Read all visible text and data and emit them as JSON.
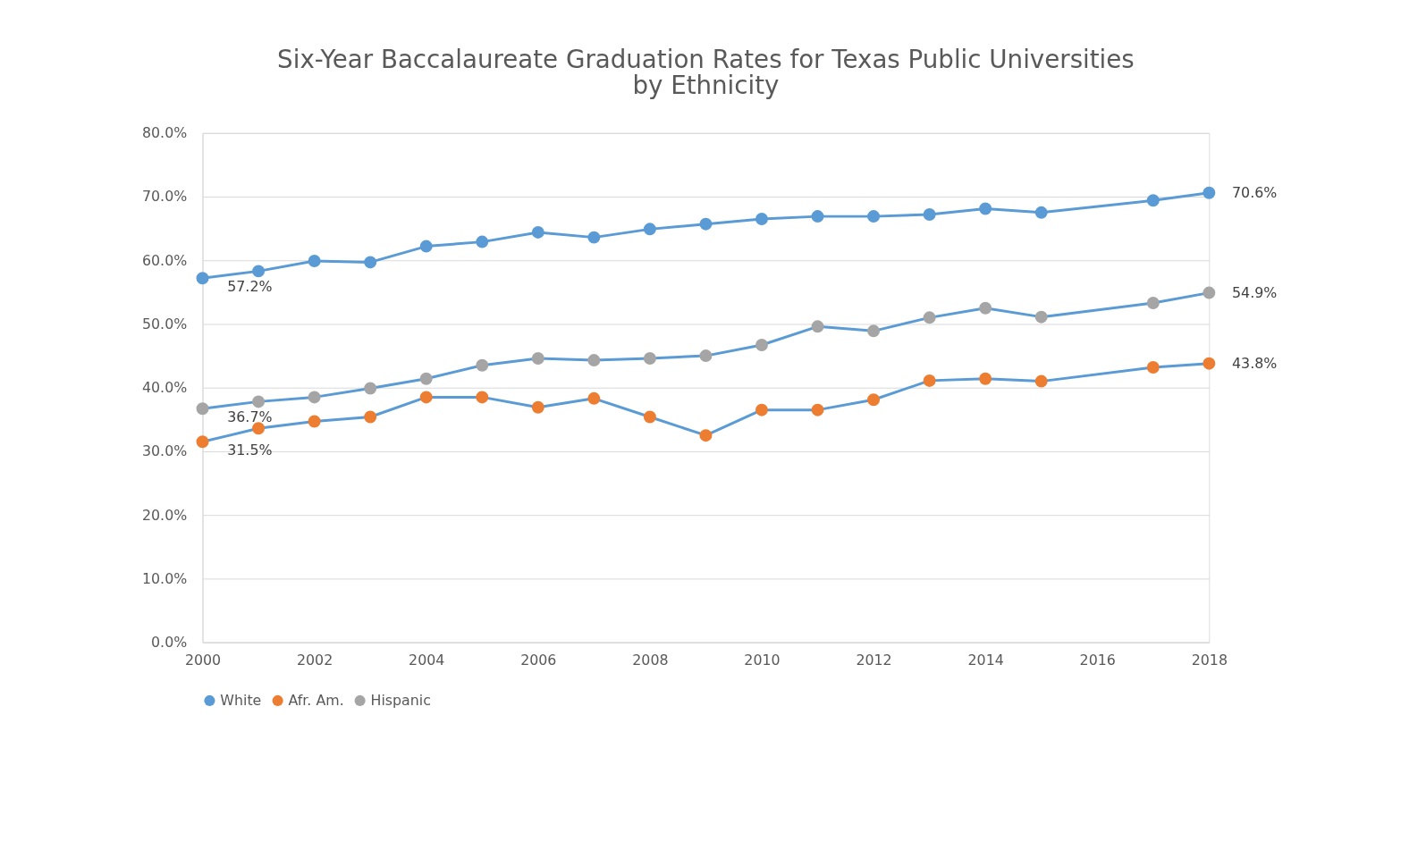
{
  "chart_data": {
    "type": "line",
    "title": "Six-Year Baccalaureate Graduation Rates for Texas Public Universities by Ethnicity",
    "x": [
      2000,
      2001,
      2002,
      2003,
      2004,
      2005,
      2006,
      2007,
      2008,
      2009,
      2010,
      2011,
      2012,
      2013,
      2014,
      2015,
      2017,
      2018
    ],
    "series": [
      {
        "name": "White",
        "color": "#5b9bd5",
        "values": [
          57.2,
          58.3,
          59.9,
          59.7,
          62.2,
          62.9,
          64.4,
          63.6,
          64.9,
          65.7,
          66.5,
          66.9,
          66.9,
          67.2,
          68.1,
          67.5,
          69.4,
          70.6
        ],
        "value_labels": [
          "57.2%",
          null,
          null,
          null,
          null,
          null,
          null,
          null,
          null,
          null,
          null,
          null,
          null,
          null,
          null,
          null,
          null,
          "70.6%"
        ]
      },
      {
        "name": "Afr. Am.",
        "color": "#ed7d31",
        "values": [
          31.5,
          33.6,
          34.7,
          35.4,
          38.5,
          38.5,
          36.9,
          38.3,
          35.4,
          32.5,
          36.5,
          36.5,
          38.1,
          41.1,
          41.4,
          41.0,
          43.2,
          43.8
        ],
        "value_labels": [
          "31.5%",
          null,
          null,
          null,
          null,
          null,
          null,
          null,
          null,
          null,
          null,
          null,
          null,
          null,
          null,
          null,
          null,
          "43.8%"
        ]
      },
      {
        "name": "Hispanic",
        "color": "#a5a5a5",
        "values": [
          36.7,
          37.8,
          38.5,
          39.9,
          41.4,
          43.5,
          44.6,
          44.3,
          44.6,
          45.0,
          46.7,
          49.6,
          48.9,
          51.0,
          52.5,
          51.1,
          53.3,
          54.9
        ],
        "value_labels": [
          "36.7%",
          null,
          null,
          null,
          null,
          null,
          null,
          null,
          null,
          null,
          null,
          null,
          null,
          null,
          null,
          null,
          null,
          "54.9%"
        ]
      }
    ],
    "xlim": [
      2000,
      2018
    ],
    "xticks": [
      2000,
      2002,
      2004,
      2006,
      2008,
      2010,
      2012,
      2014,
      2016,
      2018
    ],
    "ylim": [
      0,
      80
    ],
    "yticks": [
      {
        "value": 0,
        "label": "0.0%"
      },
      {
        "value": 10,
        "label": "10.0%"
      },
      {
        "value": 20,
        "label": "20.0%"
      },
      {
        "value": 30,
        "label": "30.0%"
      },
      {
        "value": 40,
        "label": "40.0%"
      },
      {
        "value": 50,
        "label": "50.0%"
      },
      {
        "value": 60,
        "label": "60.0%"
      },
      {
        "value": 70,
        "label": "70.0%"
      },
      {
        "value": 80,
        "label": "80.0%"
      }
    ],
    "grid": "y",
    "legend": "bottom",
    "marker": "circle",
    "line_style": "solid"
  }
}
